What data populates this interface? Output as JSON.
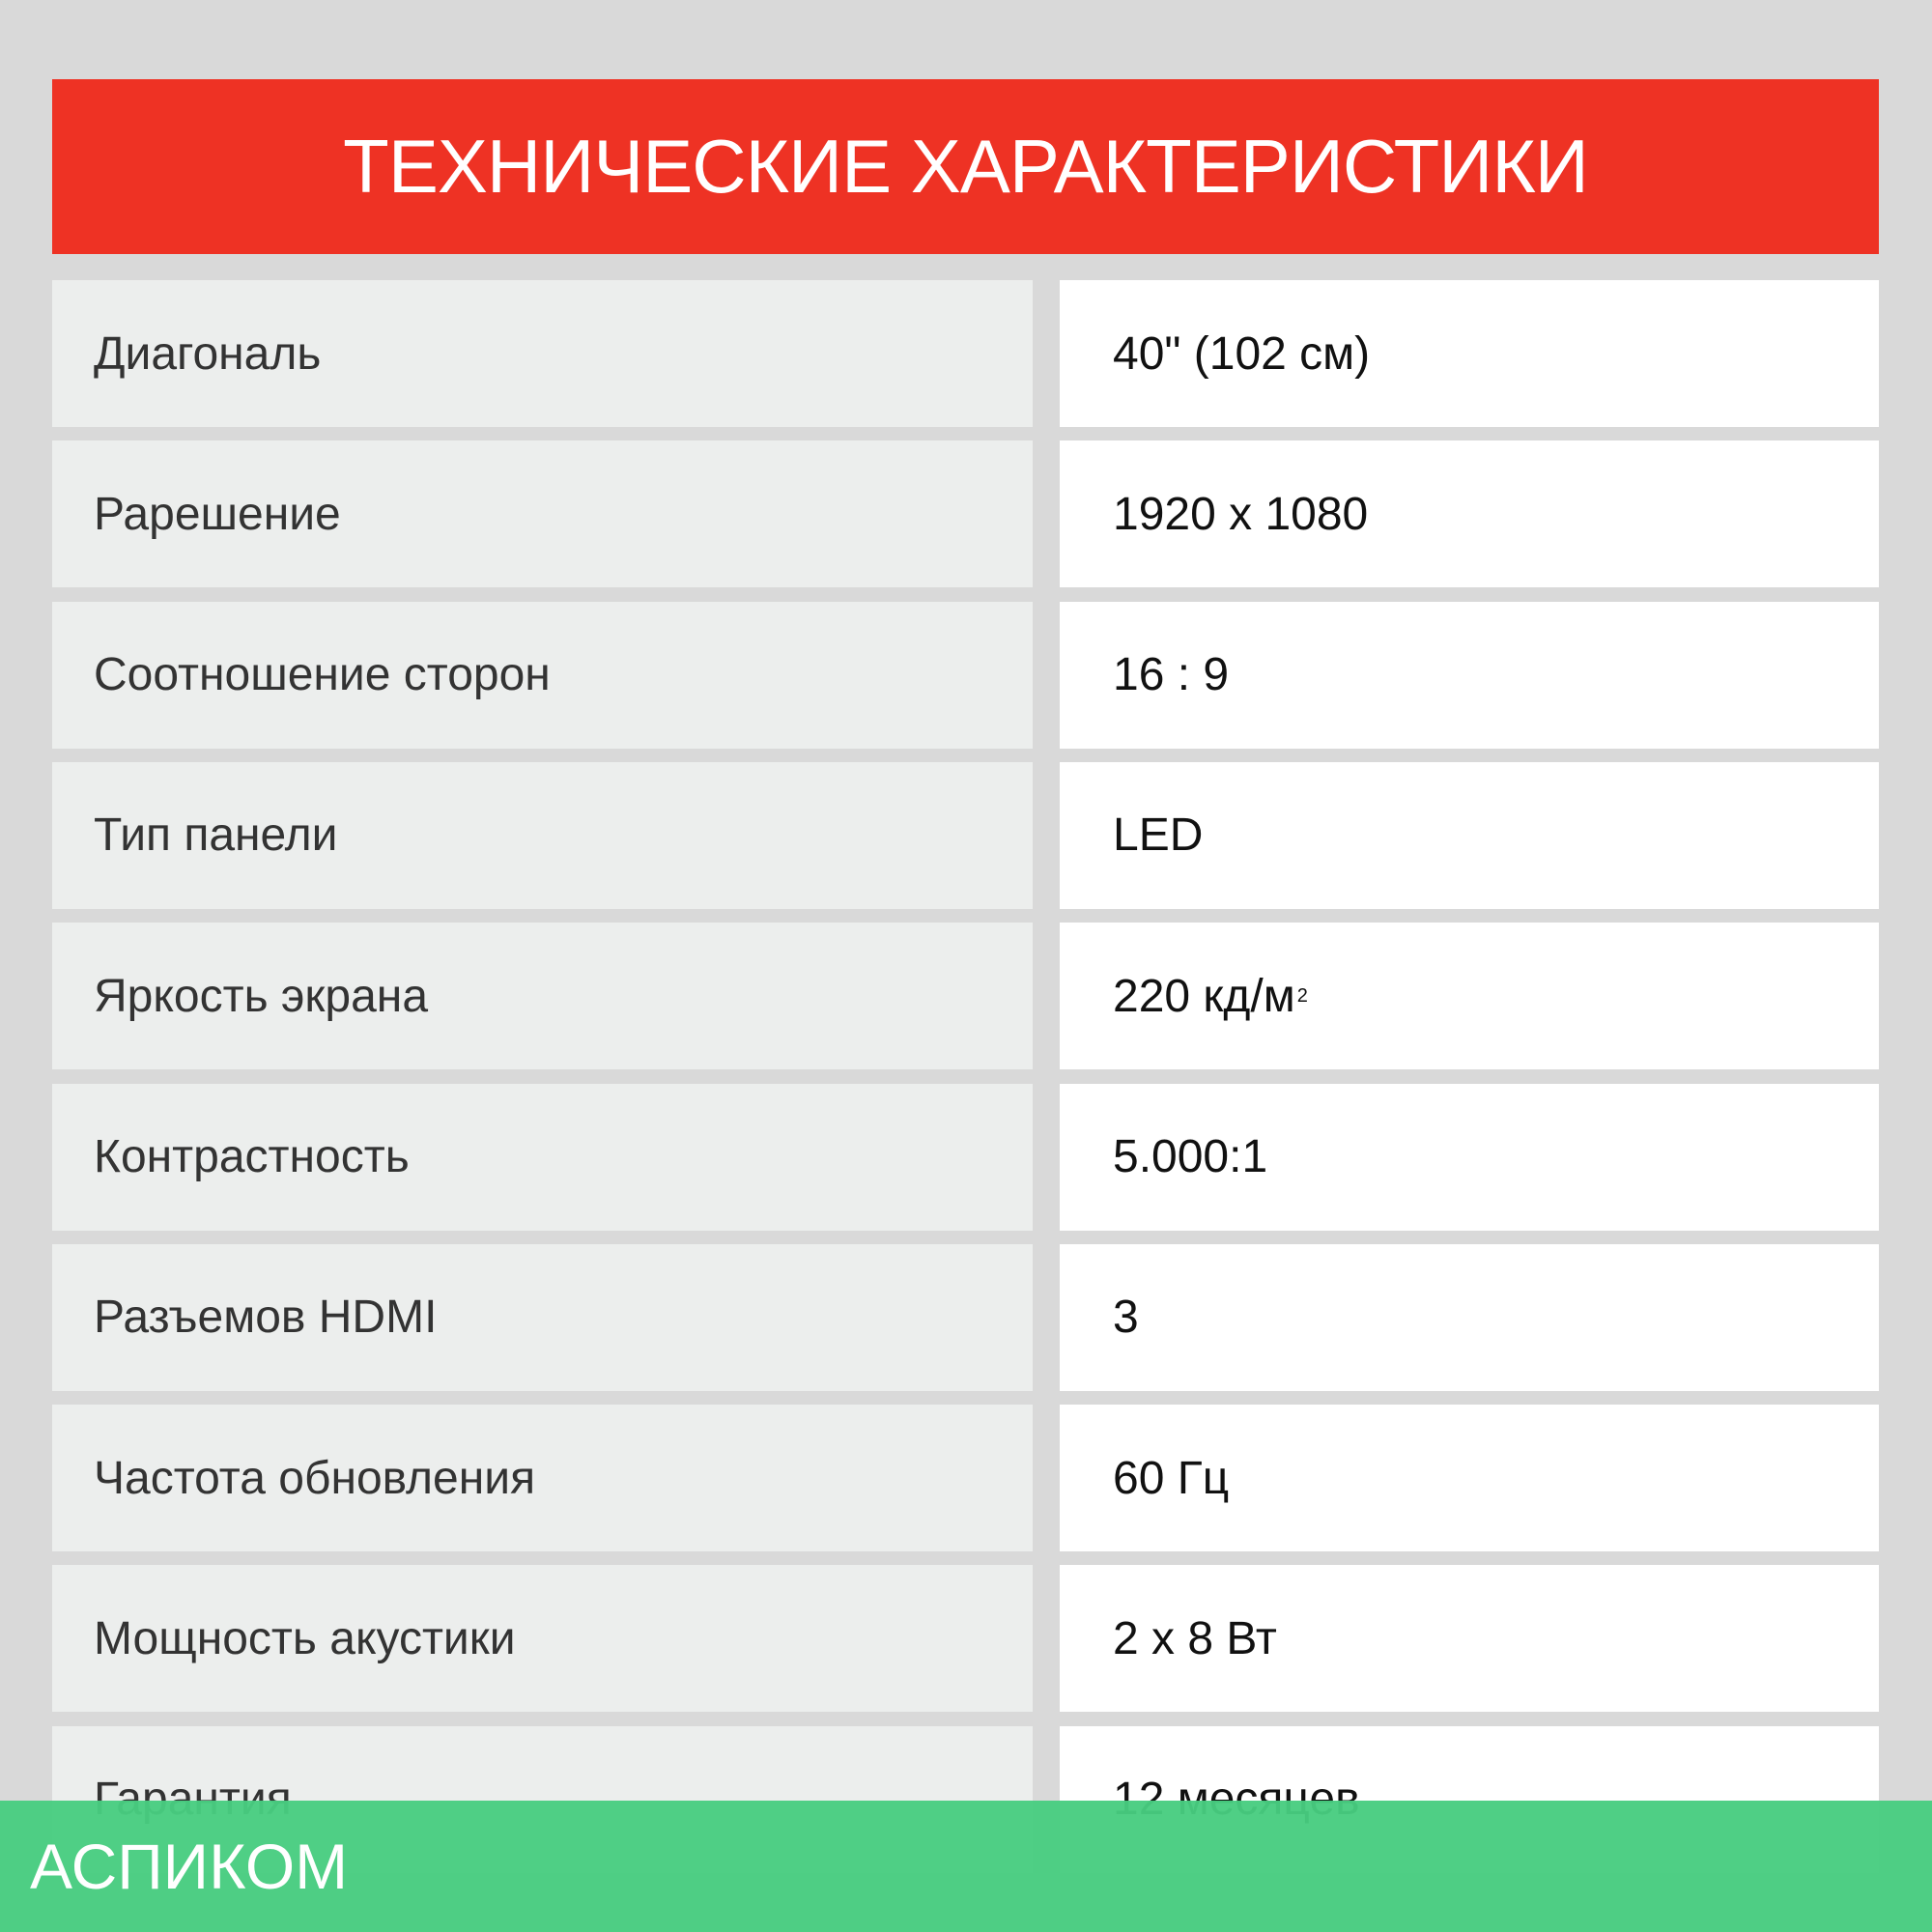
{
  "title": "ТЕХНИЧЕСКИЕ ХАРАКТЕРИСТИКИ",
  "specs": [
    {
      "label": "Диагональ",
      "value": "40\" (102 см)"
    },
    {
      "label": "Рарешение",
      "value": "1920 x 1080"
    },
    {
      "label": "Соотношение сторон",
      "value": "16 : 9"
    },
    {
      "label": "Тип панели",
      "value": "LED"
    },
    {
      "label": "Яркость экрана",
      "value": "220 кд/м",
      "sup": "2"
    },
    {
      "label": "Контрастность",
      "value": "5.000:1"
    },
    {
      "label": "Разъемов HDMI",
      "value": "3"
    },
    {
      "label": "Частота обновления",
      "value": "60 Гц"
    },
    {
      "label": "Мощность акустики",
      "value": "2 x 8 Вт"
    },
    {
      "label": "Гарантия",
      "value": "12 месяцев"
    }
  ],
  "watermark": "АСПИКОМ",
  "colors": {
    "header": "#ee3224",
    "footer": "#48cd80"
  }
}
